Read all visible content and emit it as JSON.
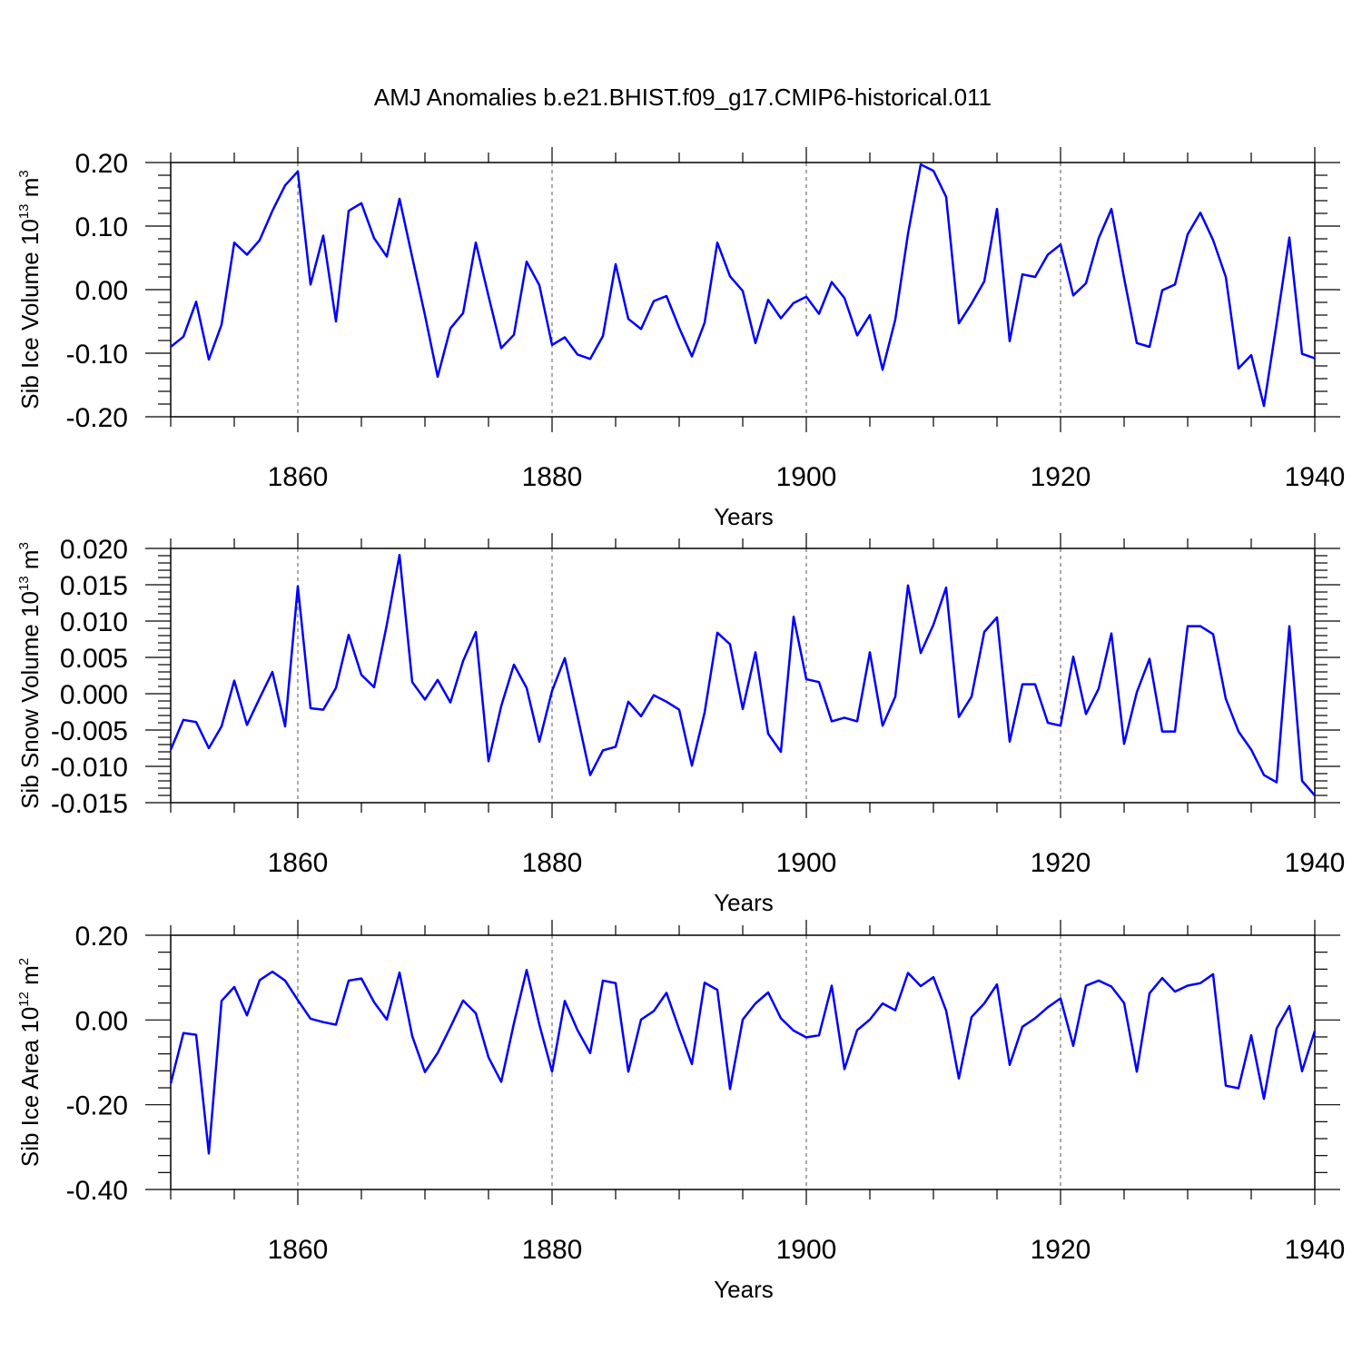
{
  "chart_data": {
    "type": "line",
    "title": "AMJ Anomalies b.e21.BHIST.f09_g17.CMIP6-historical.011",
    "line_color": "#0000ff",
    "x": [
      1850,
      1851,
      1852,
      1853,
      1854,
      1855,
      1856,
      1857,
      1858,
      1859,
      1860,
      1861,
      1862,
      1863,
      1864,
      1865,
      1866,
      1867,
      1868,
      1869,
      1870,
      1871,
      1872,
      1873,
      1874,
      1875,
      1876,
      1877,
      1878,
      1879,
      1880,
      1881,
      1882,
      1883,
      1884,
      1885,
      1886,
      1887,
      1888,
      1889,
      1890,
      1891,
      1892,
      1893,
      1894,
      1895,
      1896,
      1897,
      1898,
      1899,
      1900,
      1901,
      1902,
      1903,
      1904,
      1905,
      1906,
      1907,
      1908,
      1909,
      1910,
      1911,
      1912,
      1913,
      1914,
      1915,
      1916,
      1917,
      1918,
      1919,
      1920,
      1921,
      1922,
      1923,
      1924,
      1925,
      1926,
      1927,
      1928,
      1929,
      1930,
      1931,
      1932,
      1933,
      1934,
      1935,
      1936,
      1937,
      1938,
      1939,
      1940
    ],
    "panels": [
      {
        "ylabel": "Sib Ice Volume 10",
        "ylabel_exp": "13",
        "ylabel_unit": " m",
        "ylabel_unit_exp": "3",
        "xlabel": "Years",
        "xlim": [
          1850,
          1940
        ],
        "ylim": [
          -0.2,
          0.2
        ],
        "yticks": [
          -0.2,
          -0.1,
          0.0,
          0.1,
          0.2
        ],
        "yticklabels": [
          "-0.20",
          "-0.10",
          "0.00",
          "0.10",
          "0.20"
        ],
        "xticks": [
          1860,
          1880,
          1900,
          1920,
          1940
        ],
        "xticklabels": [
          "1860",
          "1880",
          "1900",
          "1920",
          "1940"
        ],
        "values": [
          -0.09,
          -0.074,
          -0.019,
          -0.11,
          -0.055,
          0.074,
          0.055,
          0.078,
          0.124,
          0.164,
          0.186,
          0.008,
          0.085,
          -0.05,
          0.124,
          0.136,
          0.081,
          0.052,
          0.143,
          0.051,
          -0.04,
          -0.137,
          -0.061,
          -0.037,
          0.074,
          -0.01,
          -0.092,
          -0.071,
          0.044,
          0.007,
          -0.087,
          -0.075,
          -0.102,
          -0.109,
          -0.073,
          0.04,
          -0.046,
          -0.062,
          -0.018,
          -0.01,
          -0.06,
          -0.105,
          -0.052,
          0.074,
          0.021,
          -0.002,
          -0.084,
          -0.016,
          -0.045,
          -0.021,
          -0.011,
          -0.038,
          0.012,
          -0.013,
          -0.072,
          -0.04,
          -0.126,
          -0.047,
          0.088,
          0.197,
          0.187,
          0.146,
          -0.053,
          -0.022,
          0.013,
          0.127,
          -0.081,
          0.024,
          0.02,
          0.055,
          0.071,
          -0.009,
          0.01,
          0.081,
          0.127,
          0.018,
          -0.084,
          -0.09,
          -0.001,
          0.008,
          0.087,
          0.121,
          0.078,
          0.02,
          -0.124,
          -0.103,
          -0.183,
          -0.053,
          0.082,
          -0.101,
          -0.108
        ]
      },
      {
        "ylabel": "Sib Snow Volume 10",
        "ylabel_exp": "13",
        "ylabel_unit": " m",
        "ylabel_unit_exp": "3",
        "xlabel": "Years",
        "xlim": [
          1850,
          1940
        ],
        "ylim": [
          -0.015,
          0.02
        ],
        "yticks": [
          -0.015,
          -0.01,
          -0.005,
          0.0,
          0.005,
          0.01,
          0.015,
          0.02
        ],
        "yticklabels": [
          "-0.015",
          "-0.010",
          "-0.005",
          "0.000",
          "0.005",
          "0.010",
          "0.015",
          "0.020"
        ],
        "xticks": [
          1860,
          1880,
          1900,
          1920,
          1940
        ],
        "xticklabels": [
          "1860",
          "1880",
          "1900",
          "1920",
          "1940"
        ],
        "values": [
          -0.0077,
          -0.0036,
          -0.0039,
          -0.0075,
          -0.0045,
          0.0018,
          -0.0043,
          -0.0006,
          0.003,
          -0.0045,
          0.0148,
          -0.002,
          -0.0022,
          0.0008,
          0.0081,
          0.0026,
          0.0009,
          0.0095,
          0.0191,
          0.0016,
          -0.0008,
          0.0019,
          -0.0012,
          0.0045,
          0.0085,
          -0.0093,
          -0.0017,
          0.004,
          0.0008,
          -0.0066,
          0.0004,
          0.0049,
          -0.0031,
          -0.0112,
          -0.0078,
          -0.0073,
          -0.0011,
          -0.0031,
          -0.0002,
          -0.0011,
          -0.0022,
          -0.0099,
          -0.0026,
          0.0084,
          0.0068,
          -0.0021,
          0.0057,
          -0.0055,
          -0.008,
          0.0106,
          0.002,
          0.0016,
          -0.0038,
          -0.0033,
          -0.0038,
          0.0057,
          -0.0044,
          -0.0004,
          0.0149,
          0.0056,
          0.0095,
          0.0146,
          -0.0032,
          -0.0004,
          0.0085,
          0.0105,
          -0.0066,
          0.0013,
          0.0013,
          -0.004,
          -0.0044,
          0.0051,
          -0.0028,
          0.0007,
          0.0083,
          -0.0069,
          0.0002,
          0.0048,
          -0.0052,
          -0.0052,
          0.0093,
          0.0093,
          0.0082,
          -0.0007,
          -0.0052,
          -0.0077,
          -0.0112,
          -0.0122,
          0.0093,
          -0.012,
          -0.014
        ]
      },
      {
        "ylabel": "Sib Ice Area 10",
        "ylabel_exp": "12",
        "ylabel_unit": " m",
        "ylabel_unit_exp": "2",
        "xlabel": "Years",
        "xlim": [
          1850,
          1940
        ],
        "ylim": [
          -0.4,
          0.2
        ],
        "yticks": [
          -0.4,
          -0.2,
          0.0,
          0.2
        ],
        "yticklabels": [
          "-0.40",
          "-0.20",
          "0.00",
          "0.20"
        ],
        "xticks": [
          1860,
          1880,
          1900,
          1920,
          1940
        ],
        "xticklabels": [
          "1860",
          "1880",
          "1900",
          "1920",
          "1940"
        ],
        "values": [
          -0.15,
          -0.031,
          -0.035,
          -0.315,
          0.045,
          0.078,
          0.011,
          0.094,
          0.114,
          0.093,
          0.047,
          0.003,
          -0.005,
          -0.011,
          0.093,
          0.098,
          0.042,
          0.001,
          0.112,
          -0.038,
          -0.123,
          -0.078,
          -0.017,
          0.046,
          0.016,
          -0.088,
          -0.146,
          -0.008,
          0.118,
          -0.011,
          -0.122,
          0.045,
          -0.024,
          -0.078,
          0.093,
          0.087,
          -0.122,
          0.001,
          0.021,
          0.064,
          -0.022,
          -0.104,
          0.088,
          0.071,
          -0.163,
          0.001,
          0.039,
          0.065,
          0.004,
          -0.025,
          -0.041,
          -0.036,
          0.081,
          -0.116,
          -0.024,
          0.001,
          0.039,
          0.023,
          0.111,
          0.08,
          0.101,
          0.022,
          -0.138,
          0.007,
          0.039,
          0.084,
          -0.106,
          -0.016,
          0.004,
          0.03,
          0.051,
          -0.061,
          0.081,
          0.093,
          0.079,
          0.04,
          -0.122,
          0.063,
          0.099,
          0.067,
          0.081,
          0.087,
          0.108,
          -0.155,
          -0.161,
          -0.036,
          -0.186,
          -0.02,
          0.033,
          -0.121,
          -0.026
        ]
      }
    ]
  }
}
